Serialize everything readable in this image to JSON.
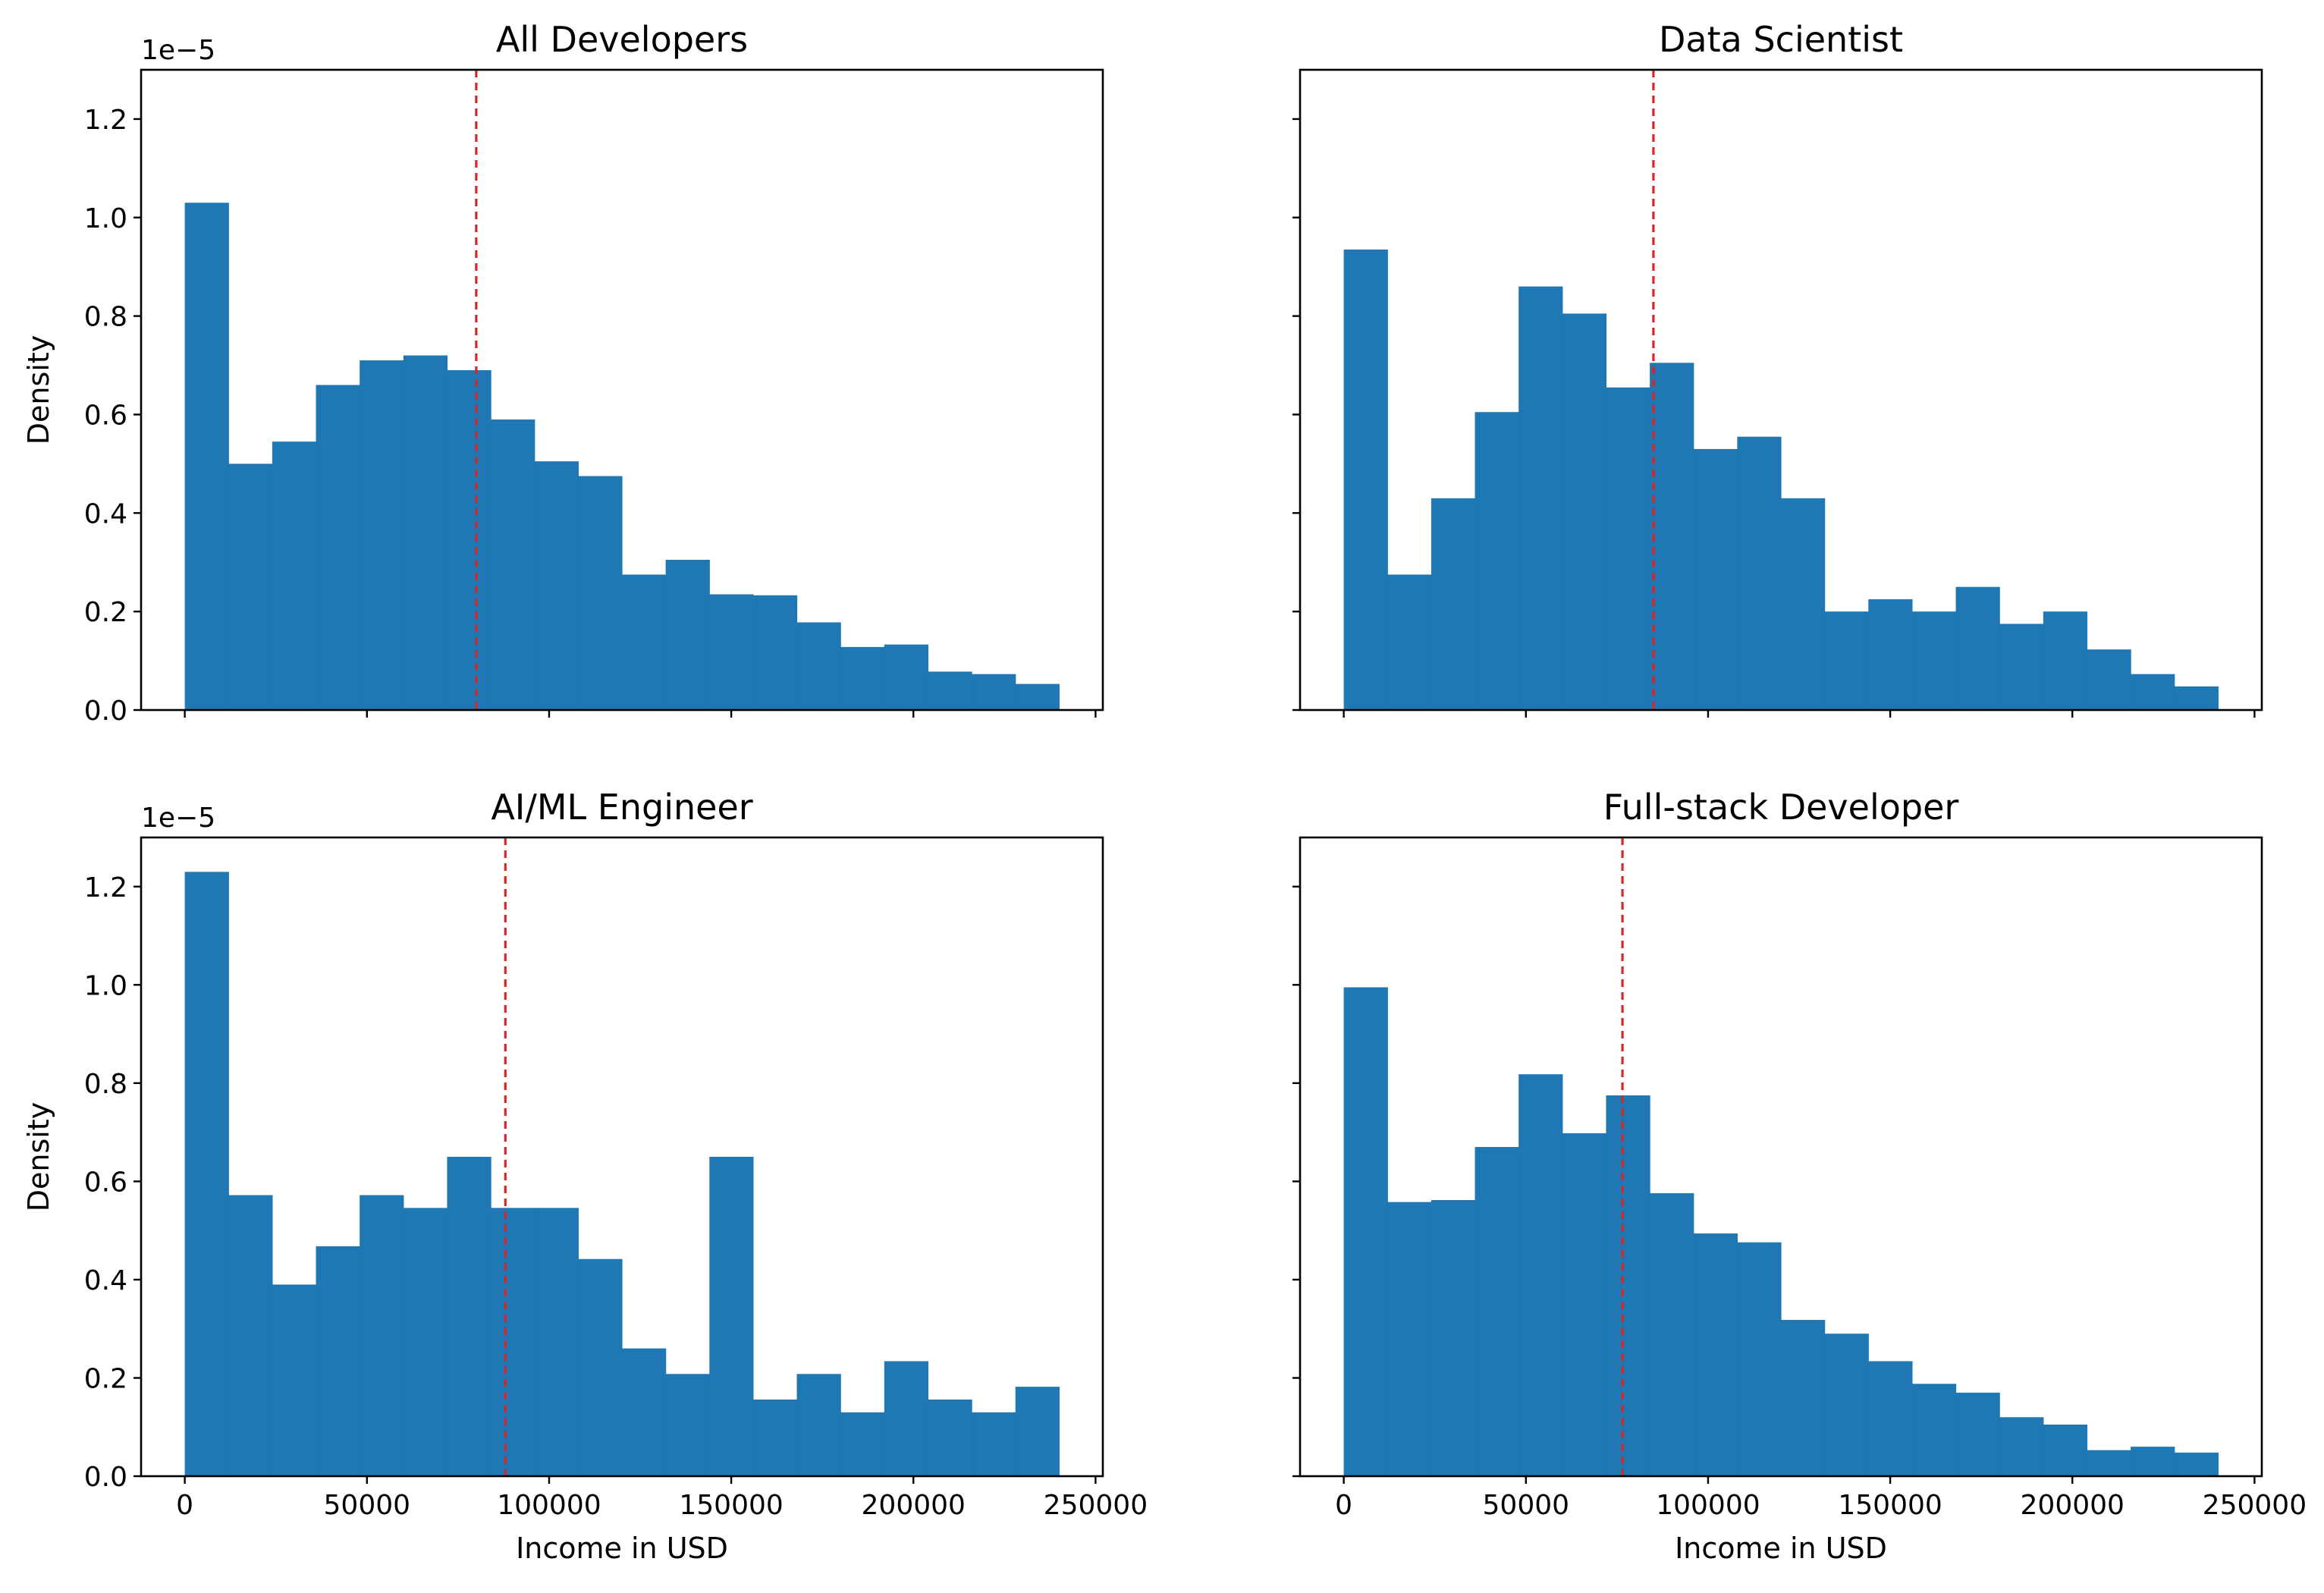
{
  "chart_data": [
    {
      "type": "bar",
      "title": "All Developers",
      "xlabel": "",
      "ylabel": "Density",
      "y_offset_label": "1e−5",
      "xlim": [
        -12000,
        252000
      ],
      "ylim": [
        0,
        1.3
      ],
      "y_scale_factor": "1e-5",
      "bin_width": 12000,
      "bin_start": 0,
      "values": [
        1.03,
        0.5,
        0.545,
        0.66,
        0.71,
        0.72,
        0.69,
        0.59,
        0.505,
        0.475,
        0.275,
        0.305,
        0.235,
        0.233,
        0.178,
        0.128,
        0.133,
        0.078,
        0.073,
        0.053
      ],
      "median_line": 80000,
      "xticks": [
        0,
        50000,
        100000,
        150000,
        200000,
        250000
      ],
      "xtick_labels": [],
      "yticks": [
        0.0,
        0.2,
        0.4,
        0.6,
        0.8,
        1.0,
        1.2
      ],
      "ytick_labels": [
        "0.0",
        "0.2",
        "0.4",
        "0.6",
        "0.8",
        "1.0",
        "1.2"
      ],
      "color": "#1f77b4",
      "median_color": "#d62728"
    },
    {
      "type": "bar",
      "title": "Data Scientist",
      "xlabel": "",
      "ylabel": "",
      "y_offset_label": "",
      "xlim": [
        -12000,
        252000
      ],
      "ylim": [
        0,
        1.3
      ],
      "bin_width": 12000,
      "bin_start": 0,
      "values": [
        0.935,
        0.275,
        0.43,
        0.605,
        0.86,
        0.805,
        0.655,
        0.705,
        0.53,
        0.555,
        0.43,
        0.2,
        0.225,
        0.2,
        0.25,
        0.175,
        0.2,
        0.123,
        0.073,
        0.048
      ],
      "median_line": 85000,
      "xticks": [
        0,
        50000,
        100000,
        150000,
        200000,
        250000
      ],
      "xtick_labels": [],
      "yticks": [
        0.0,
        0.2,
        0.4,
        0.6,
        0.8,
        1.0,
        1.2
      ],
      "ytick_labels": [],
      "color": "#1f77b4",
      "median_color": "#d62728"
    },
    {
      "type": "bar",
      "title": "AI/ML Engineer",
      "xlabel": "Income in USD",
      "ylabel": "Density",
      "y_offset_label": "1e−5",
      "xlim": [
        -12000,
        252000
      ],
      "ylim": [
        0,
        1.3
      ],
      "bin_width": 12000,
      "bin_start": 0,
      "values": [
        1.23,
        0.572,
        0.39,
        0.468,
        0.572,
        0.546,
        0.65,
        0.546,
        0.546,
        0.442,
        0.26,
        0.208,
        0.65,
        0.156,
        0.208,
        0.13,
        0.234,
        0.156,
        0.13,
        0.182
      ],
      "median_line": 88000,
      "xticks": [
        0,
        50000,
        100000,
        150000,
        200000,
        250000
      ],
      "xtick_labels": [
        "0",
        "50000",
        "100000",
        "150000",
        "200000",
        "250000"
      ],
      "yticks": [
        0.0,
        0.2,
        0.4,
        0.6,
        0.8,
        1.0,
        1.2
      ],
      "ytick_labels": [
        "0.0",
        "0.2",
        "0.4",
        "0.6",
        "0.8",
        "1.0",
        "1.2"
      ],
      "color": "#1f77b4",
      "median_color": "#d62728"
    },
    {
      "type": "bar",
      "title": "Full-stack Developer",
      "xlabel": "Income in USD",
      "ylabel": "",
      "y_offset_label": "",
      "xlim": [
        -12000,
        252000
      ],
      "ylim": [
        0,
        1.3
      ],
      "bin_width": 12000,
      "bin_start": 0,
      "values": [
        0.995,
        0.558,
        0.562,
        0.67,
        0.818,
        0.698,
        0.775,
        0.576,
        0.494,
        0.476,
        0.318,
        0.29,
        0.234,
        0.188,
        0.17,
        0.12,
        0.105,
        0.053,
        0.06,
        0.048
      ],
      "median_line": 76500,
      "xticks": [
        0,
        50000,
        100000,
        150000,
        200000,
        250000
      ],
      "xtick_labels": [
        "0",
        "50000",
        "100000",
        "150000",
        "200000",
        "250000"
      ],
      "yticks": [
        0.0,
        0.2,
        0.4,
        0.6,
        0.8,
        1.0,
        1.2
      ],
      "ytick_labels": [],
      "color": "#1f77b4",
      "median_color": "#d62728"
    }
  ]
}
